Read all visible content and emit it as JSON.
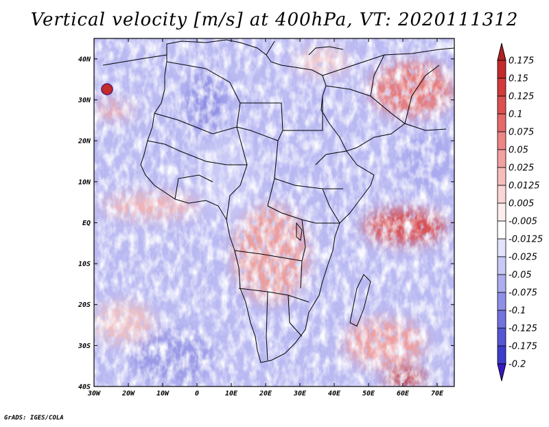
{
  "title": "Vertical velocity [m/s] at 400hPa, VT: 2020111312",
  "credit": "GrADS: IGES/COLA",
  "map": {
    "lon_range": [
      -30,
      75
    ],
    "lat_range": [
      -40,
      45
    ],
    "lon_ticks": [
      {
        "value": -30,
        "label": "30W"
      },
      {
        "value": -20,
        "label": "20W"
      },
      {
        "value": -10,
        "label": "10W"
      },
      {
        "value": 0,
        "label": "0"
      },
      {
        "value": 10,
        "label": "10E"
      },
      {
        "value": 20,
        "label": "20E"
      },
      {
        "value": 30,
        "label": "30E"
      },
      {
        "value": 40,
        "label": "40E"
      },
      {
        "value": 50,
        "label": "50E"
      },
      {
        "value": 60,
        "label": "60E"
      },
      {
        "value": 70,
        "label": "70E"
      }
    ],
    "lat_ticks": [
      {
        "value": 40,
        "label": "40N"
      },
      {
        "value": 30,
        "label": "30N"
      },
      {
        "value": 20,
        "label": "20N"
      },
      {
        "value": 10,
        "label": "10N"
      },
      {
        "value": 0,
        "label": "EQ"
      },
      {
        "value": -10,
        "label": "10S"
      },
      {
        "value": -20,
        "label": "20S"
      },
      {
        "value": -30,
        "label": "30S"
      },
      {
        "value": -40,
        "label": "40S"
      }
    ]
  },
  "colorbar": {
    "top_color": "#b22222",
    "bottom_color": "#3a17c4",
    "levels": [
      {
        "label": "0.175",
        "color": "#c42a2a"
      },
      {
        "label": "0.15",
        "color": "#d33a3a"
      },
      {
        "label": "0.125",
        "color": "#dd5050"
      },
      {
        "label": "0.1",
        "color": "#e66a6a"
      },
      {
        "label": "0.075",
        "color": "#ef8585"
      },
      {
        "label": "0.05",
        "color": "#f3a0a0"
      },
      {
        "label": "0.025",
        "color": "#f7bcbc"
      },
      {
        "label": "0.0125",
        "color": "#fad6d6"
      },
      {
        "label": "0.005",
        "color": "#fdeeee"
      },
      {
        "label": "-0.005",
        "color": "#ffffff"
      },
      {
        "label": "-0.0125",
        "color": "#e3e3fb"
      },
      {
        "label": "-0.025",
        "color": "#c9c9f5"
      },
      {
        "label": "-0.05",
        "color": "#adadef"
      },
      {
        "label": "-0.075",
        "color": "#9090e8"
      },
      {
        "label": "-0.1",
        "color": "#7373e0"
      },
      {
        "label": "-0.125",
        "color": "#5555d6"
      },
      {
        "label": "-0.175",
        "color": "#3d3dcc"
      },
      {
        "label": "-0.2",
        "color": "#2a22c2"
      }
    ]
  }
}
